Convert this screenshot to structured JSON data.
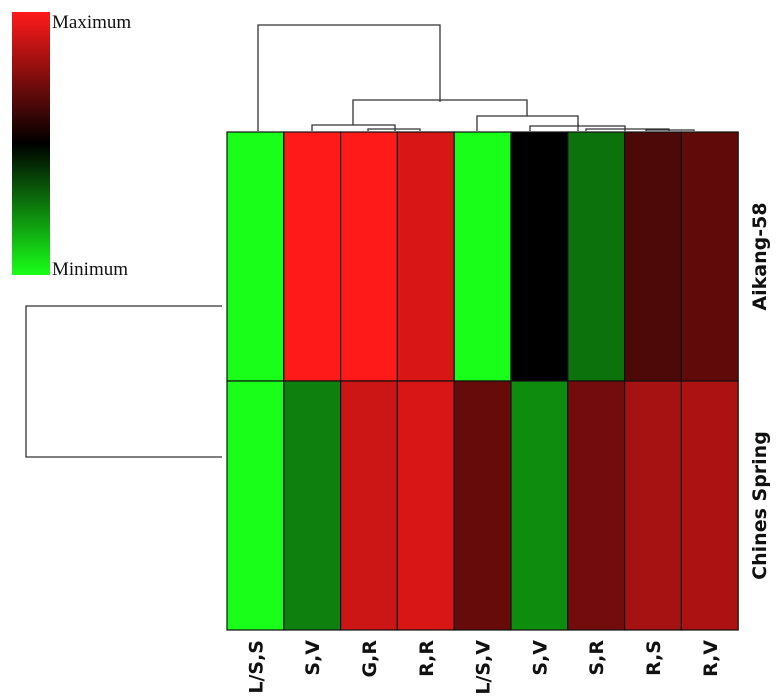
{
  "chart_data": {
    "type": "heatmap",
    "columns": [
      "L/S,S",
      "S,V",
      "G,R",
      "R,R",
      "L/S,V",
      "S,V",
      "S,R",
      "R,S",
      "R,V"
    ],
    "rows": [
      "Aikang-58",
      "Chines Spring"
    ],
    "values": [
      [
        -1.0,
        1.0,
        1.0,
        0.85,
        -1.0,
        0.0,
        -0.45,
        0.3,
        0.38
      ],
      [
        -1.0,
        -0.5,
        0.8,
        0.85,
        0.4,
        -0.55,
        0.45,
        0.65,
        0.68
      ]
    ],
    "scale": {
      "max_label": "Maximum",
      "min_label": "Minimum",
      "colors": {
        "max": "#ff1a1a",
        "mid": "#000000",
        "min": "#1aff1a"
      }
    },
    "column_dendrogram": true,
    "row_dendrogram": true
  }
}
